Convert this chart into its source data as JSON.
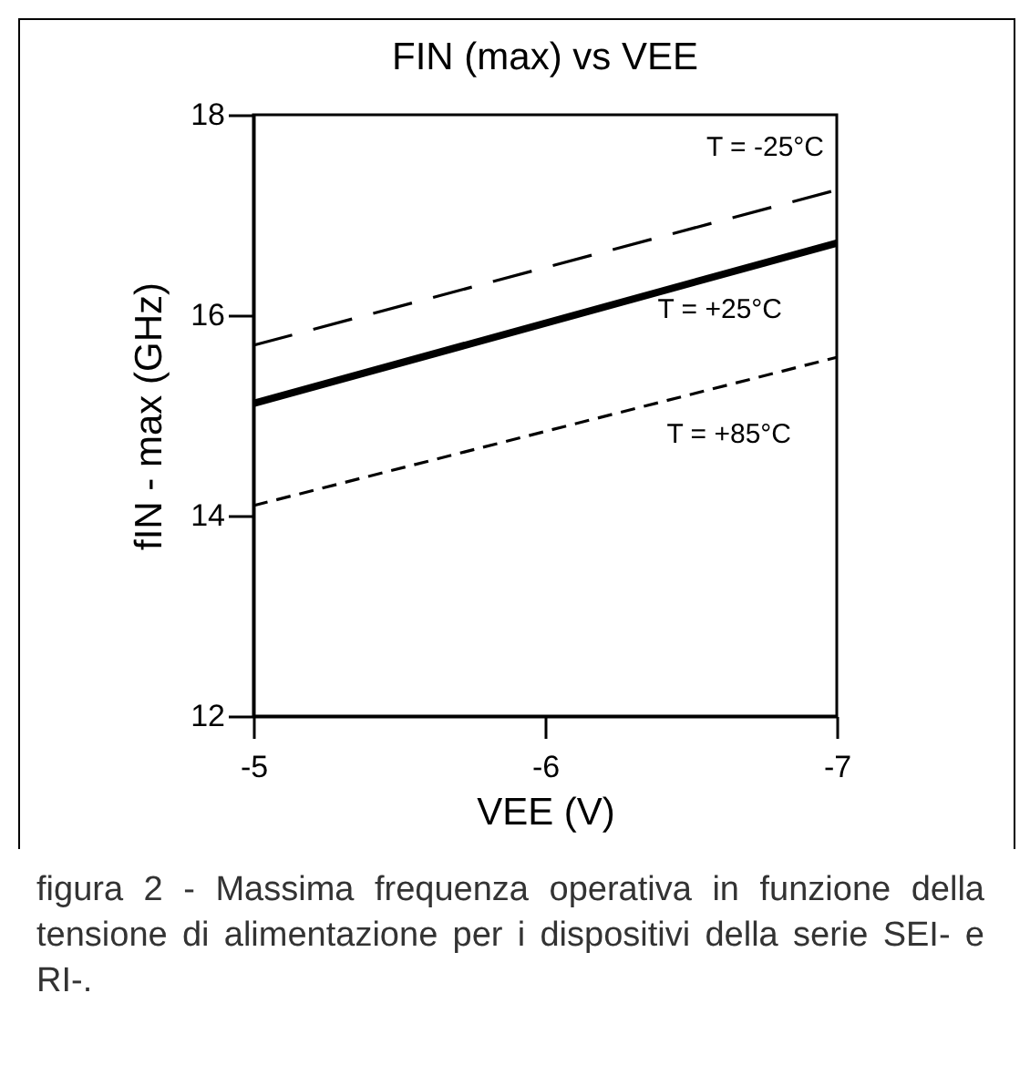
{
  "chart_data": {
    "type": "line",
    "title": "FIN (max) vs VEE",
    "xlabel": "VEE (V)",
    "ylabel": "fIN - max (GHz)",
    "x": [
      -5,
      -7
    ],
    "series": [
      {
        "name": "T = -25°C",
        "color": "#000000",
        "line_style": "dashed",
        "values": [
          15.7,
          17.25
        ]
      },
      {
        "name": "T = +25°C",
        "color": "#000000",
        "line_style": "solid",
        "values": [
          15.12,
          16.72
        ]
      },
      {
        "name": "T = +85°C",
        "color": "#000000",
        "line_style": "dashed",
        "values": [
          14.1,
          15.58
        ]
      }
    ],
    "xlim": [
      -5,
      -7
    ],
    "xticks": [
      -5,
      -6,
      -7
    ],
    "ylim": [
      12,
      18
    ],
    "yticks": [
      12,
      14,
      16,
      18
    ],
    "grid": false,
    "legend": false,
    "marker": "none",
    "annotations": [
      "figura 2 - Massima frequenza operativa in funzione della tensione di alimentazione per i dispositivi della serie SEI- e RI-."
    ]
  }
}
